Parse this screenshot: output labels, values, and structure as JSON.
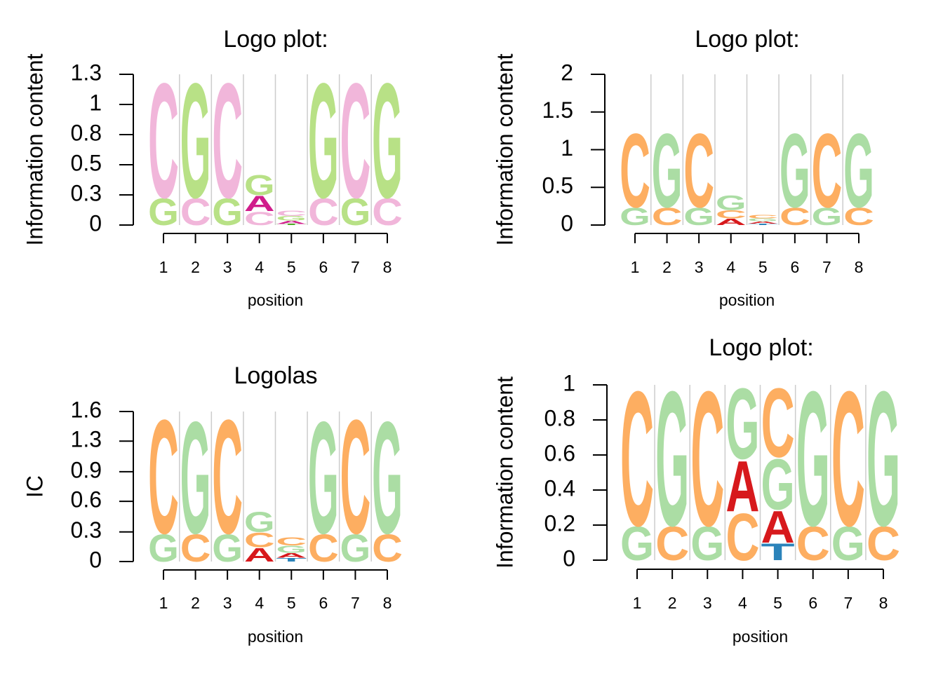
{
  "chart_data": [
    {
      "type": "logo",
      "title": "Logo plot:",
      "xlabel": "position",
      "ylabel": "Information content",
      "x": [
        1,
        2,
        3,
        4,
        5,
        6,
        7,
        8
      ],
      "xlim": [
        1,
        8
      ],
      "xticks": [
        1,
        2,
        3,
        4,
        5,
        6,
        7,
        8
      ],
      "ylim": [
        0,
        1.3
      ],
      "yticks": [
        0,
        {
          "value": 0.26,
          "label": "0.3"
        },
        {
          "value": 0.52,
          "label": "0.5"
        },
        {
          "value": 0.78,
          "label": "0.8"
        },
        {
          "value": 1.04,
          "label": "1"
        },
        1.3
      ],
      "grid": true,
      "series": [
        {
          "name": "A",
          "color": "#d01c8b",
          "values": [
            0,
            0,
            0,
            0.14,
            0.03,
            0,
            0,
            0
          ]
        },
        {
          "name": "C",
          "color": "#f1b6da",
          "values": [
            1.03,
            0.24,
            1.03,
            0.12,
            0.05,
            0.24,
            1.03,
            0.24
          ]
        },
        {
          "name": "G",
          "color": "#b8e186",
          "values": [
            0.24,
            1.03,
            0.24,
            0.18,
            0.04,
            1.03,
            0.24,
            1.03
          ]
        },
        {
          "name": "T",
          "color": "#4dac26",
          "values": [
            0,
            0,
            0,
            0,
            0.01,
            0,
            0,
            0
          ]
        }
      ]
    },
    {
      "type": "logo",
      "title": "Logo plot:",
      "xlabel": "position",
      "ylabel": "Information content",
      "x": [
        1,
        2,
        3,
        4,
        5,
        6,
        7,
        8
      ],
      "xlim": [
        1,
        8
      ],
      "xticks": [
        1,
        2,
        3,
        4,
        5,
        6,
        7,
        8
      ],
      "ylim": [
        0,
        2
      ],
      "yticks": [
        0,
        0.5,
        1,
        1.5,
        2
      ],
      "grid": true,
      "series": [
        {
          "name": "A",
          "color": "#d7191c",
          "values": [
            0,
            0,
            0,
            0.09,
            0.03,
            0,
            0,
            0
          ]
        },
        {
          "name": "C",
          "color": "#fdae61",
          "values": [
            1.02,
            0.24,
            1.02,
            0.11,
            0.05,
            0.24,
            1.02,
            0.24
          ]
        },
        {
          "name": "G",
          "color": "#abdda4",
          "values": [
            0.24,
            1.02,
            0.24,
            0.2,
            0.04,
            1.02,
            0.24,
            1.02
          ]
        },
        {
          "name": "T",
          "color": "#2b83ba",
          "values": [
            0,
            0,
            0,
            0,
            0.02,
            0,
            0,
            0
          ]
        }
      ]
    },
    {
      "type": "logo",
      "title": "Logolas",
      "xlabel": "position",
      "ylabel": "IC",
      "x": [
        1,
        2,
        3,
        4,
        5,
        6,
        7,
        8
      ],
      "xlim": [
        1,
        8
      ],
      "xticks": [
        1,
        2,
        3,
        4,
        5,
        6,
        7,
        8
      ],
      "ylim": [
        0,
        1.57
      ],
      "yticks": [
        0,
        {
          "value": 0.31,
          "label": "0.3"
        },
        {
          "value": 0.63,
          "label": "0.6"
        },
        {
          "value": 0.94,
          "label": "0.9"
        },
        {
          "value": 1.26,
          "label": "1.3"
        },
        {
          "value": 1.57,
          "label": "1.6"
        }
      ],
      "grid": true,
      "series": [
        {
          "name": "A",
          "color": "#d7191c",
          "values": [
            0,
            0,
            0,
            0.15,
            0.05,
            0,
            0,
            0
          ]
        },
        {
          "name": "C",
          "color": "#fdae61",
          "values": [
            1.24,
            0.3,
            1.24,
            0.16,
            0.09,
            0.3,
            1.24,
            0.3
          ]
        },
        {
          "name": "G",
          "color": "#abdda4",
          "values": [
            0.3,
            1.22,
            0.3,
            0.22,
            0.08,
            1.22,
            0.3,
            1.22
          ]
        },
        {
          "name": "T",
          "color": "#2b83ba",
          "values": [
            0,
            0,
            0,
            0,
            0.04,
            0,
            0,
            0
          ]
        }
      ]
    },
    {
      "type": "logo",
      "title": "Logo plot:",
      "xlabel": "position",
      "ylabel": "Information content",
      "x": [
        1,
        2,
        3,
        4,
        5,
        6,
        7,
        8
      ],
      "xlim": [
        1,
        8
      ],
      "xticks": [
        1,
        2,
        3,
        4,
        5,
        6,
        7,
        8
      ],
      "ylim": [
        0,
        1
      ],
      "yticks": [
        0,
        0.2,
        0.4,
        0.6,
        0.8,
        1
      ],
      "grid": true,
      "series": [
        {
          "name": "A",
          "color": "#d7191c",
          "values": [
            0,
            0,
            0,
            0.3,
            0.19,
            0,
            0,
            0
          ]
        },
        {
          "name": "C",
          "color": "#fdae61",
          "values": [
            0.8,
            0.2,
            0.8,
            0.28,
            0.41,
            0.2,
            0.8,
            0.2
          ]
        },
        {
          "name": "G",
          "color": "#abdda4",
          "values": [
            0.2,
            0.8,
            0.2,
            0.42,
            0.3,
            0.8,
            0.2,
            0.8
          ]
        },
        {
          "name": "T",
          "color": "#2b83ba",
          "values": [
            0,
            0,
            0,
            0,
            0.1,
            0,
            0,
            0
          ]
        }
      ]
    }
  ]
}
